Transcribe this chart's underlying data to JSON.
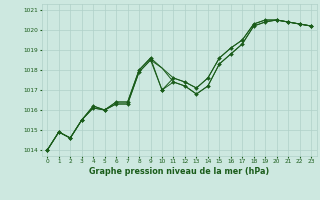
{
  "title": "Graphe pression niveau de la mer (hPa)",
  "background_color": "#cde8e0",
  "grid_color": "#b0d0c8",
  "line_color": "#1a5c1a",
  "marker_color": "#1a5c1a",
  "xlim": [
    -0.5,
    23.5
  ],
  "ylim": [
    1013.7,
    1021.3
  ],
  "yticks": [
    1014,
    1015,
    1016,
    1017,
    1018,
    1019,
    1020,
    1021
  ],
  "xticks": [
    0,
    1,
    2,
    3,
    4,
    5,
    6,
    7,
    8,
    9,
    10,
    11,
    12,
    13,
    14,
    15,
    16,
    17,
    18,
    19,
    20,
    21,
    22,
    23
  ],
  "series": [
    [
      1014.0,
      1014.9,
      1014.6,
      1015.5,
      1016.1,
      1016.0,
      1016.3,
      1016.3,
      1017.9,
      1018.5,
      1017.0,
      1017.6,
      1017.4,
      1017.1,
      1017.6,
      1018.6,
      1019.1,
      1019.5,
      1020.3,
      1020.5,
      1020.5,
      1020.4,
      1020.3,
      1020.2
    ],
    [
      1014.0,
      1014.9,
      1014.6,
      1015.5,
      1016.1,
      1016.0,
      1016.3,
      1016.3,
      1017.9,
      1018.5,
      1018.1,
      1017.6,
      1017.4,
      1017.1,
      1017.6,
      1018.6,
      1019.1,
      1019.5,
      1020.3,
      1020.5,
      1020.5,
      1020.4,
      1020.3,
      1020.2
    ],
    [
      1014.0,
      1014.9,
      1014.6,
      1015.5,
      1016.2,
      1016.0,
      1016.4,
      1016.4,
      1018.0,
      1018.6,
      1017.0,
      1017.4,
      1017.2,
      1016.8,
      1017.2,
      1018.3,
      1018.8,
      1019.3,
      1020.2,
      1020.4,
      1020.5,
      1020.4,
      1020.3,
      1020.2
    ],
    [
      1014.0,
      1014.9,
      1014.6,
      1015.5,
      1016.2,
      1016.0,
      1016.4,
      1016.4,
      1018.0,
      1018.6,
      1018.1,
      1017.4,
      1017.2,
      1016.8,
      1017.2,
      1018.3,
      1018.8,
      1019.3,
      1020.2,
      1020.4,
      1020.5,
      1020.4,
      1020.3,
      1020.2
    ]
  ],
  "show_markers": [
    true,
    false,
    true,
    false
  ],
  "linewidth": 0.7,
  "markersize": 2.0,
  "tick_labelsize": 4.2,
  "xlabel_fontsize": 5.8
}
